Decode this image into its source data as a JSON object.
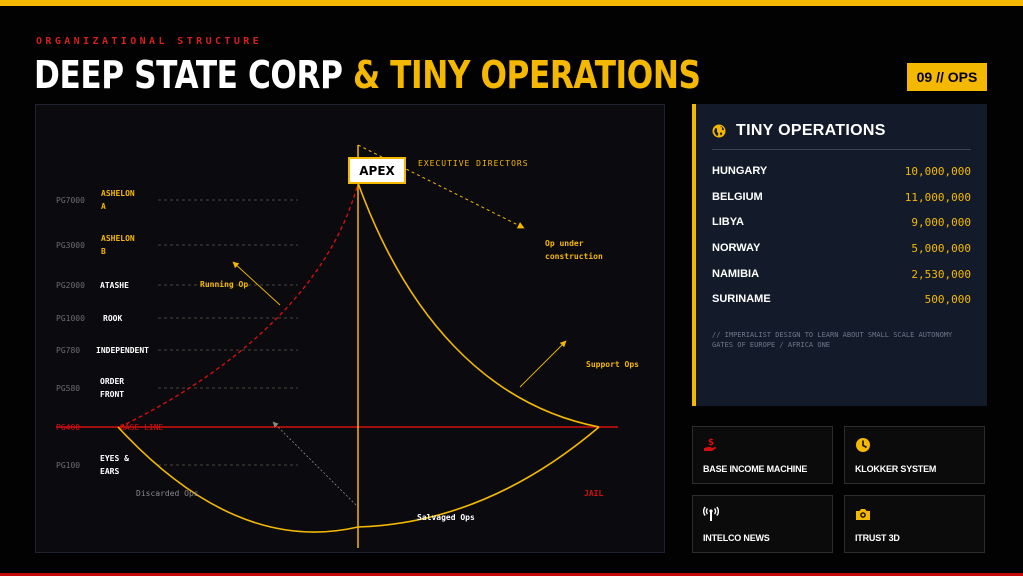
{
  "header": {
    "eyebrow": "ORGANIZATIONAL STRUCTURE",
    "title_white": "DEEP STATE CORP",
    "title_accent": " & TINY OPERATIONS",
    "badge": "09 // OPS"
  },
  "diagram": {
    "apex": "APEX",
    "levels": [
      {
        "code": "PG7000",
        "name": [
          "ASHELON",
          "A"
        ],
        "highlight": true
      },
      {
        "code": "PG3000",
        "name": [
          "ASHELON",
          "B"
        ],
        "highlight": true
      },
      {
        "code": "PG2000",
        "name": [
          "ATASHE"
        ],
        "highlight": false
      },
      {
        "code": "PG1000",
        "name": [
          "ROOK"
        ],
        "highlight": false
      },
      {
        "code": "PG780",
        "name": [
          "INDEPENDENT"
        ],
        "highlight": false
      },
      {
        "code": "PG580",
        "name": [
          "ORDER",
          "FRONT"
        ],
        "highlight": false
      },
      {
        "code": "PG400",
        "name": [
          "BASE LINE"
        ],
        "highlight": false,
        "base": true
      },
      {
        "code": "PG100",
        "name": [
          "EYES &",
          "EARS"
        ],
        "highlight": false
      }
    ],
    "labels": {
      "executive_directors": "EXECUTIVE DIRECTORS",
      "op_under_construction": [
        "Op under",
        "construction"
      ],
      "running_op": "Running Op",
      "support_ops": "Support Ops",
      "discarded_ops": "Discarded Ops",
      "salvaged_ops": "Salvaged Ops",
      "jail": "JAIL"
    },
    "colors": {
      "accent": "#f5b800",
      "red": "#d40f0f",
      "grid": "#5a5a4a"
    }
  },
  "tiny_operations": {
    "icon": "globe-icon",
    "title": "TINY OPERATIONS",
    "rows": [
      {
        "country": "HUNGARY",
        "value": "10,000,000"
      },
      {
        "country": "BELGIUM",
        "value": "11,000,000"
      },
      {
        "country": "LIBYA",
        "value": "9,000,000"
      },
      {
        "country": "NORWAY",
        "value": "5,000,000"
      },
      {
        "country": "NAMIBIA",
        "value": "2,530,000"
      },
      {
        "country": "SURINAME",
        "value": "500,000"
      }
    ],
    "note_lines": [
      "// IMPERIALIST DESIGN TO LEARN ABOUT SMALL SCALE AUTONOMY",
      "GATES OF EUROPE / AFRICA ONE"
    ]
  },
  "tiles": [
    {
      "label": "BASE INCOME MACHINE",
      "icon": "money-hand-icon",
      "icon_color": "#d40f0f"
    },
    {
      "label": "KLOKKER SYSTEM",
      "icon": "clock-icon",
      "icon_color": "#f5b800"
    },
    {
      "label": "INTELCO NEWS",
      "icon": "broadcast-icon",
      "icon_color": "#ffffff"
    },
    {
      "label": "ITRUST 3D",
      "icon": "camera-icon",
      "icon_color": "#f5b800"
    }
  ]
}
